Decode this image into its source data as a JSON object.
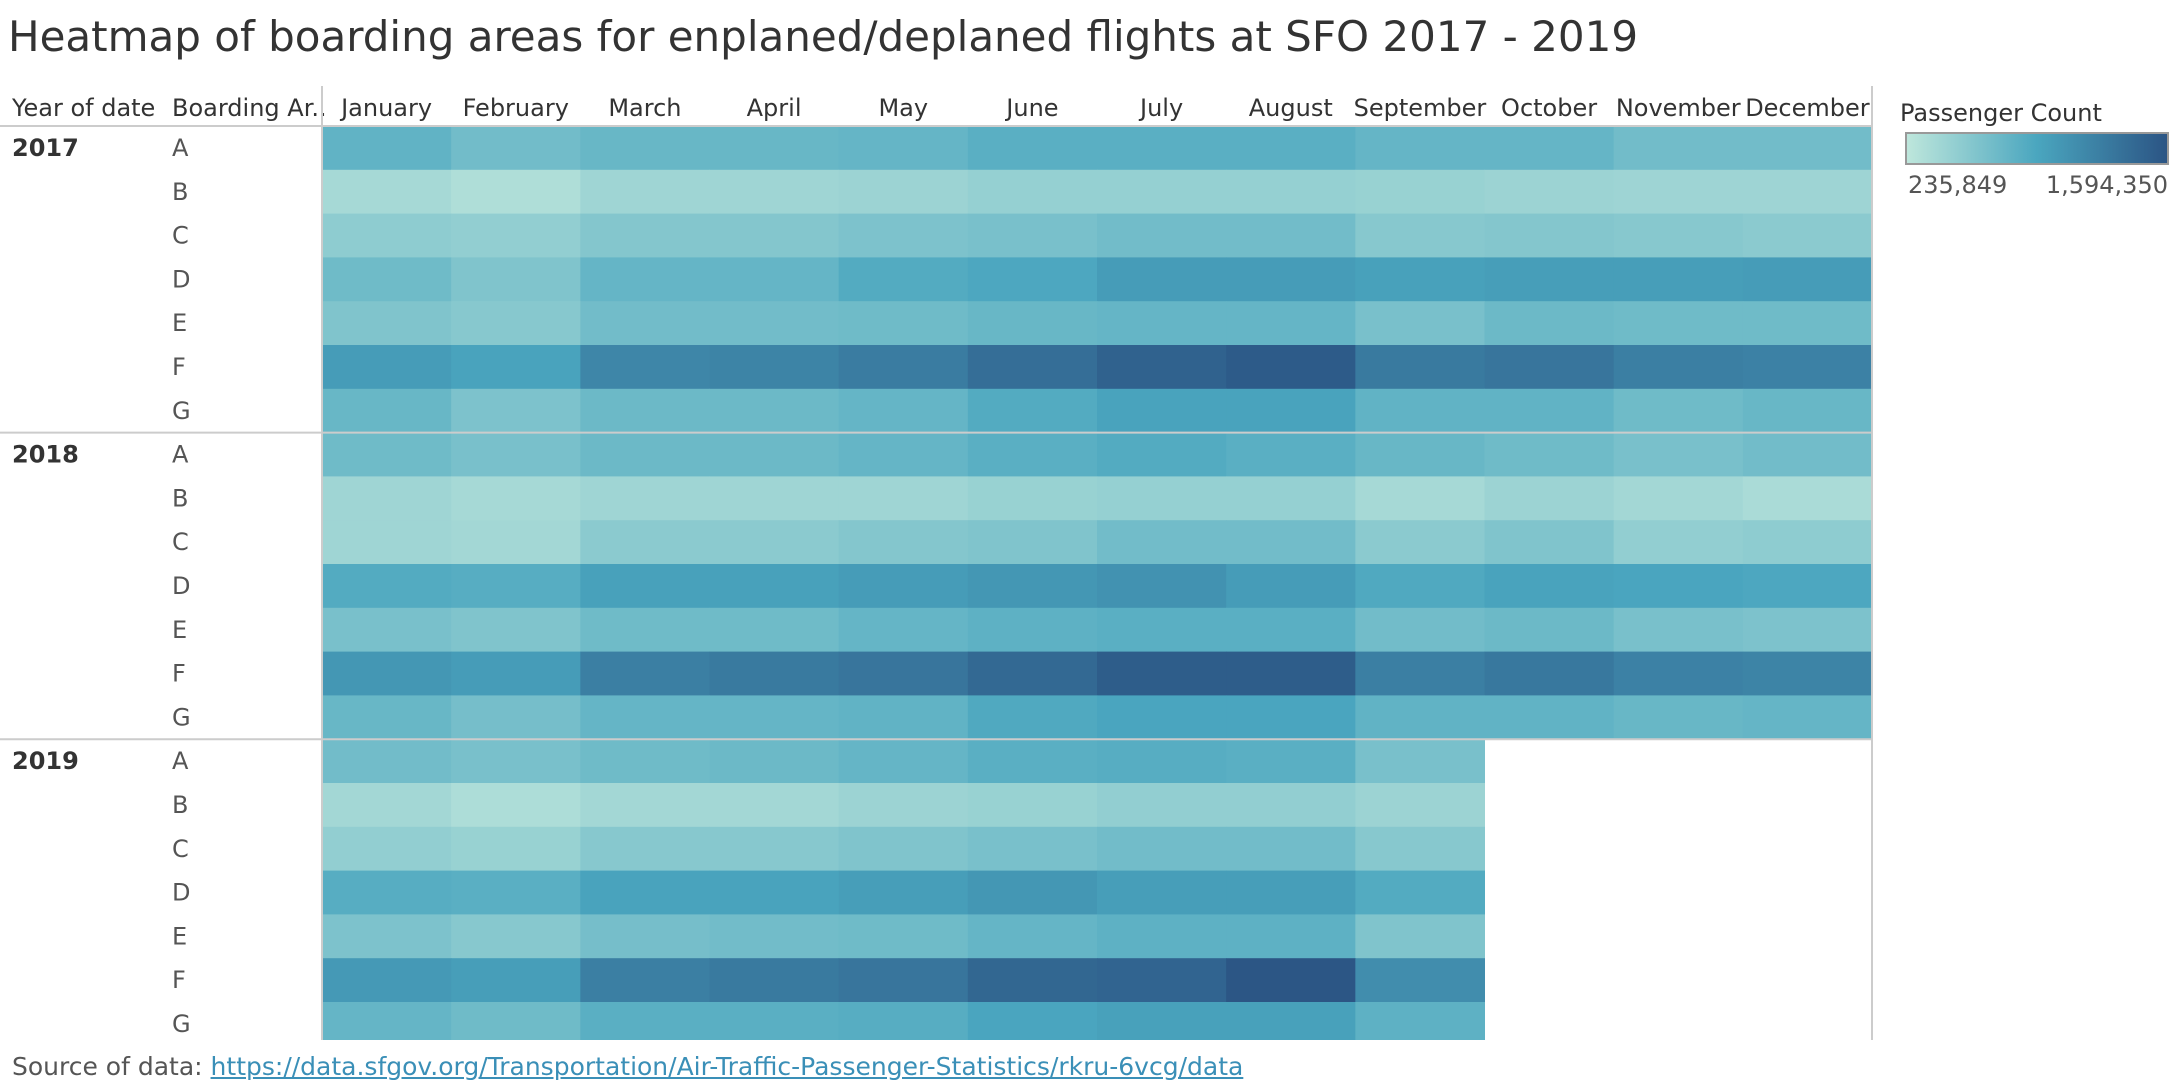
{
  "title": "Heatmap of boarding areas for enplaned/deplaned flights at SFO 2017 - 2019",
  "source": {
    "prefix": "Source of data: ",
    "link_text": "https://data.sfgov.org/Transportation/Air-Traffic-Passenger-Statistics/rkru-6vcg/data"
  },
  "chart_data": {
    "type": "heatmap",
    "row_headers": [
      "Year of date",
      "Boarding Ar.."
    ],
    "months": [
      "January",
      "February",
      "March",
      "April",
      "May",
      "June",
      "July",
      "August",
      "September",
      "October",
      "November",
      "December"
    ],
    "areas": [
      "A",
      "B",
      "C",
      "D",
      "E",
      "F",
      "G"
    ],
    "years": [
      "2017",
      "2018",
      "2019"
    ],
    "legend": {
      "title": "Passenger Count",
      "min": 235849,
      "max": 1594350,
      "min_label": "235,849",
      "max_label": "1,594,350"
    },
    "values": {
      "2017": {
        "A": [
          780000,
          680000,
          740000,
          740000,
          760000,
          820000,
          820000,
          820000,
          760000,
          760000,
          680000,
          680000
        ],
        "B": [
          380000,
          330000,
          420000,
          420000,
          440000,
          480000,
          480000,
          480000,
          460000,
          440000,
          430000,
          430000
        ],
        "C": [
          520000,
          500000,
          580000,
          580000,
          620000,
          640000,
          680000,
          680000,
          560000,
          580000,
          560000,
          540000
        ],
        "D": [
          700000,
          600000,
          760000,
          760000,
          860000,
          900000,
          1000000,
          1000000,
          960000,
          980000,
          980000,
          1000000
        ],
        "E": [
          600000,
          560000,
          680000,
          680000,
          700000,
          740000,
          760000,
          760000,
          640000,
          720000,
          700000,
          700000
        ],
        "F": [
          1000000,
          940000,
          1180000,
          1200000,
          1260000,
          1380000,
          1480000,
          1540000,
          1280000,
          1320000,
          1240000,
          1220000
        ],
        "G": [
          740000,
          620000,
          720000,
          720000,
          760000,
          860000,
          940000,
          940000,
          780000,
          780000,
          700000,
          740000
        ]
      },
      "2018": {
        "A": [
          700000,
          640000,
          720000,
          720000,
          760000,
          820000,
          860000,
          820000,
          740000,
          700000,
          640000,
          680000
        ],
        "B": [
          420000,
          380000,
          420000,
          420000,
          420000,
          460000,
          480000,
          480000,
          380000,
          440000,
          400000,
          360000
        ],
        "C": [
          420000,
          400000,
          540000,
          540000,
          580000,
          600000,
          680000,
          680000,
          540000,
          600000,
          500000,
          520000
        ],
        "D": [
          860000,
          840000,
          960000,
          960000,
          1000000,
          1040000,
          1080000,
          1000000,
          880000,
          940000,
          920000,
          900000
        ],
        "E": [
          640000,
          600000,
          700000,
          700000,
          760000,
          800000,
          820000,
          820000,
          680000,
          720000,
          640000,
          620000
        ],
        "F": [
          1040000,
          1000000,
          1240000,
          1280000,
          1320000,
          1420000,
          1520000,
          1520000,
          1240000,
          1300000,
          1220000,
          1200000
        ],
        "G": [
          740000,
          660000,
          760000,
          760000,
          780000,
          880000,
          920000,
          920000,
          780000,
          780000,
          740000,
          760000
        ]
      },
      "2019": {
        "A": [
          680000,
          640000,
          700000,
          720000,
          760000,
          820000,
          840000,
          820000,
          640000
        ],
        "B": [
          400000,
          340000,
          400000,
          400000,
          440000,
          460000,
          500000,
          500000,
          440000
        ],
        "C": [
          500000,
          460000,
          560000,
          560000,
          600000,
          640000,
          680000,
          680000,
          560000
        ],
        "D": [
          840000,
          820000,
          940000,
          940000,
          980000,
          1040000,
          980000,
          980000,
          860000
        ],
        "E": [
          620000,
          560000,
          660000,
          680000,
          700000,
          760000,
          800000,
          800000,
          600000
        ],
        "F": [
          1020000,
          980000,
          1240000,
          1280000,
          1320000,
          1440000,
          1460000,
          1580000,
          1120000
        ],
        "G": [
          760000,
          700000,
          820000,
          820000,
          840000,
          920000,
          960000,
          960000,
          800000
        ]
      }
    }
  }
}
